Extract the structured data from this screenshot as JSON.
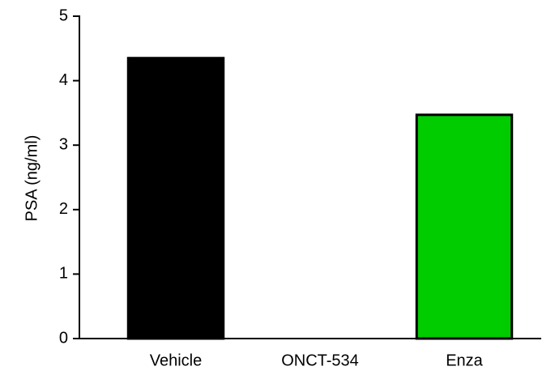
{
  "chart_data": {
    "type": "bar",
    "y_label": "PSA (ng/ml)",
    "categories": [
      "Vehicle",
      "ONCT-534",
      "Enza"
    ],
    "values": [
      4.35,
      0,
      3.47
    ],
    "colors": [
      "#000000",
      "#ffffff",
      "#00cc00"
    ],
    "ylim": [
      0,
      5
    ],
    "yticks": [
      0,
      1,
      2,
      3,
      4,
      5
    ],
    "grid": false
  }
}
